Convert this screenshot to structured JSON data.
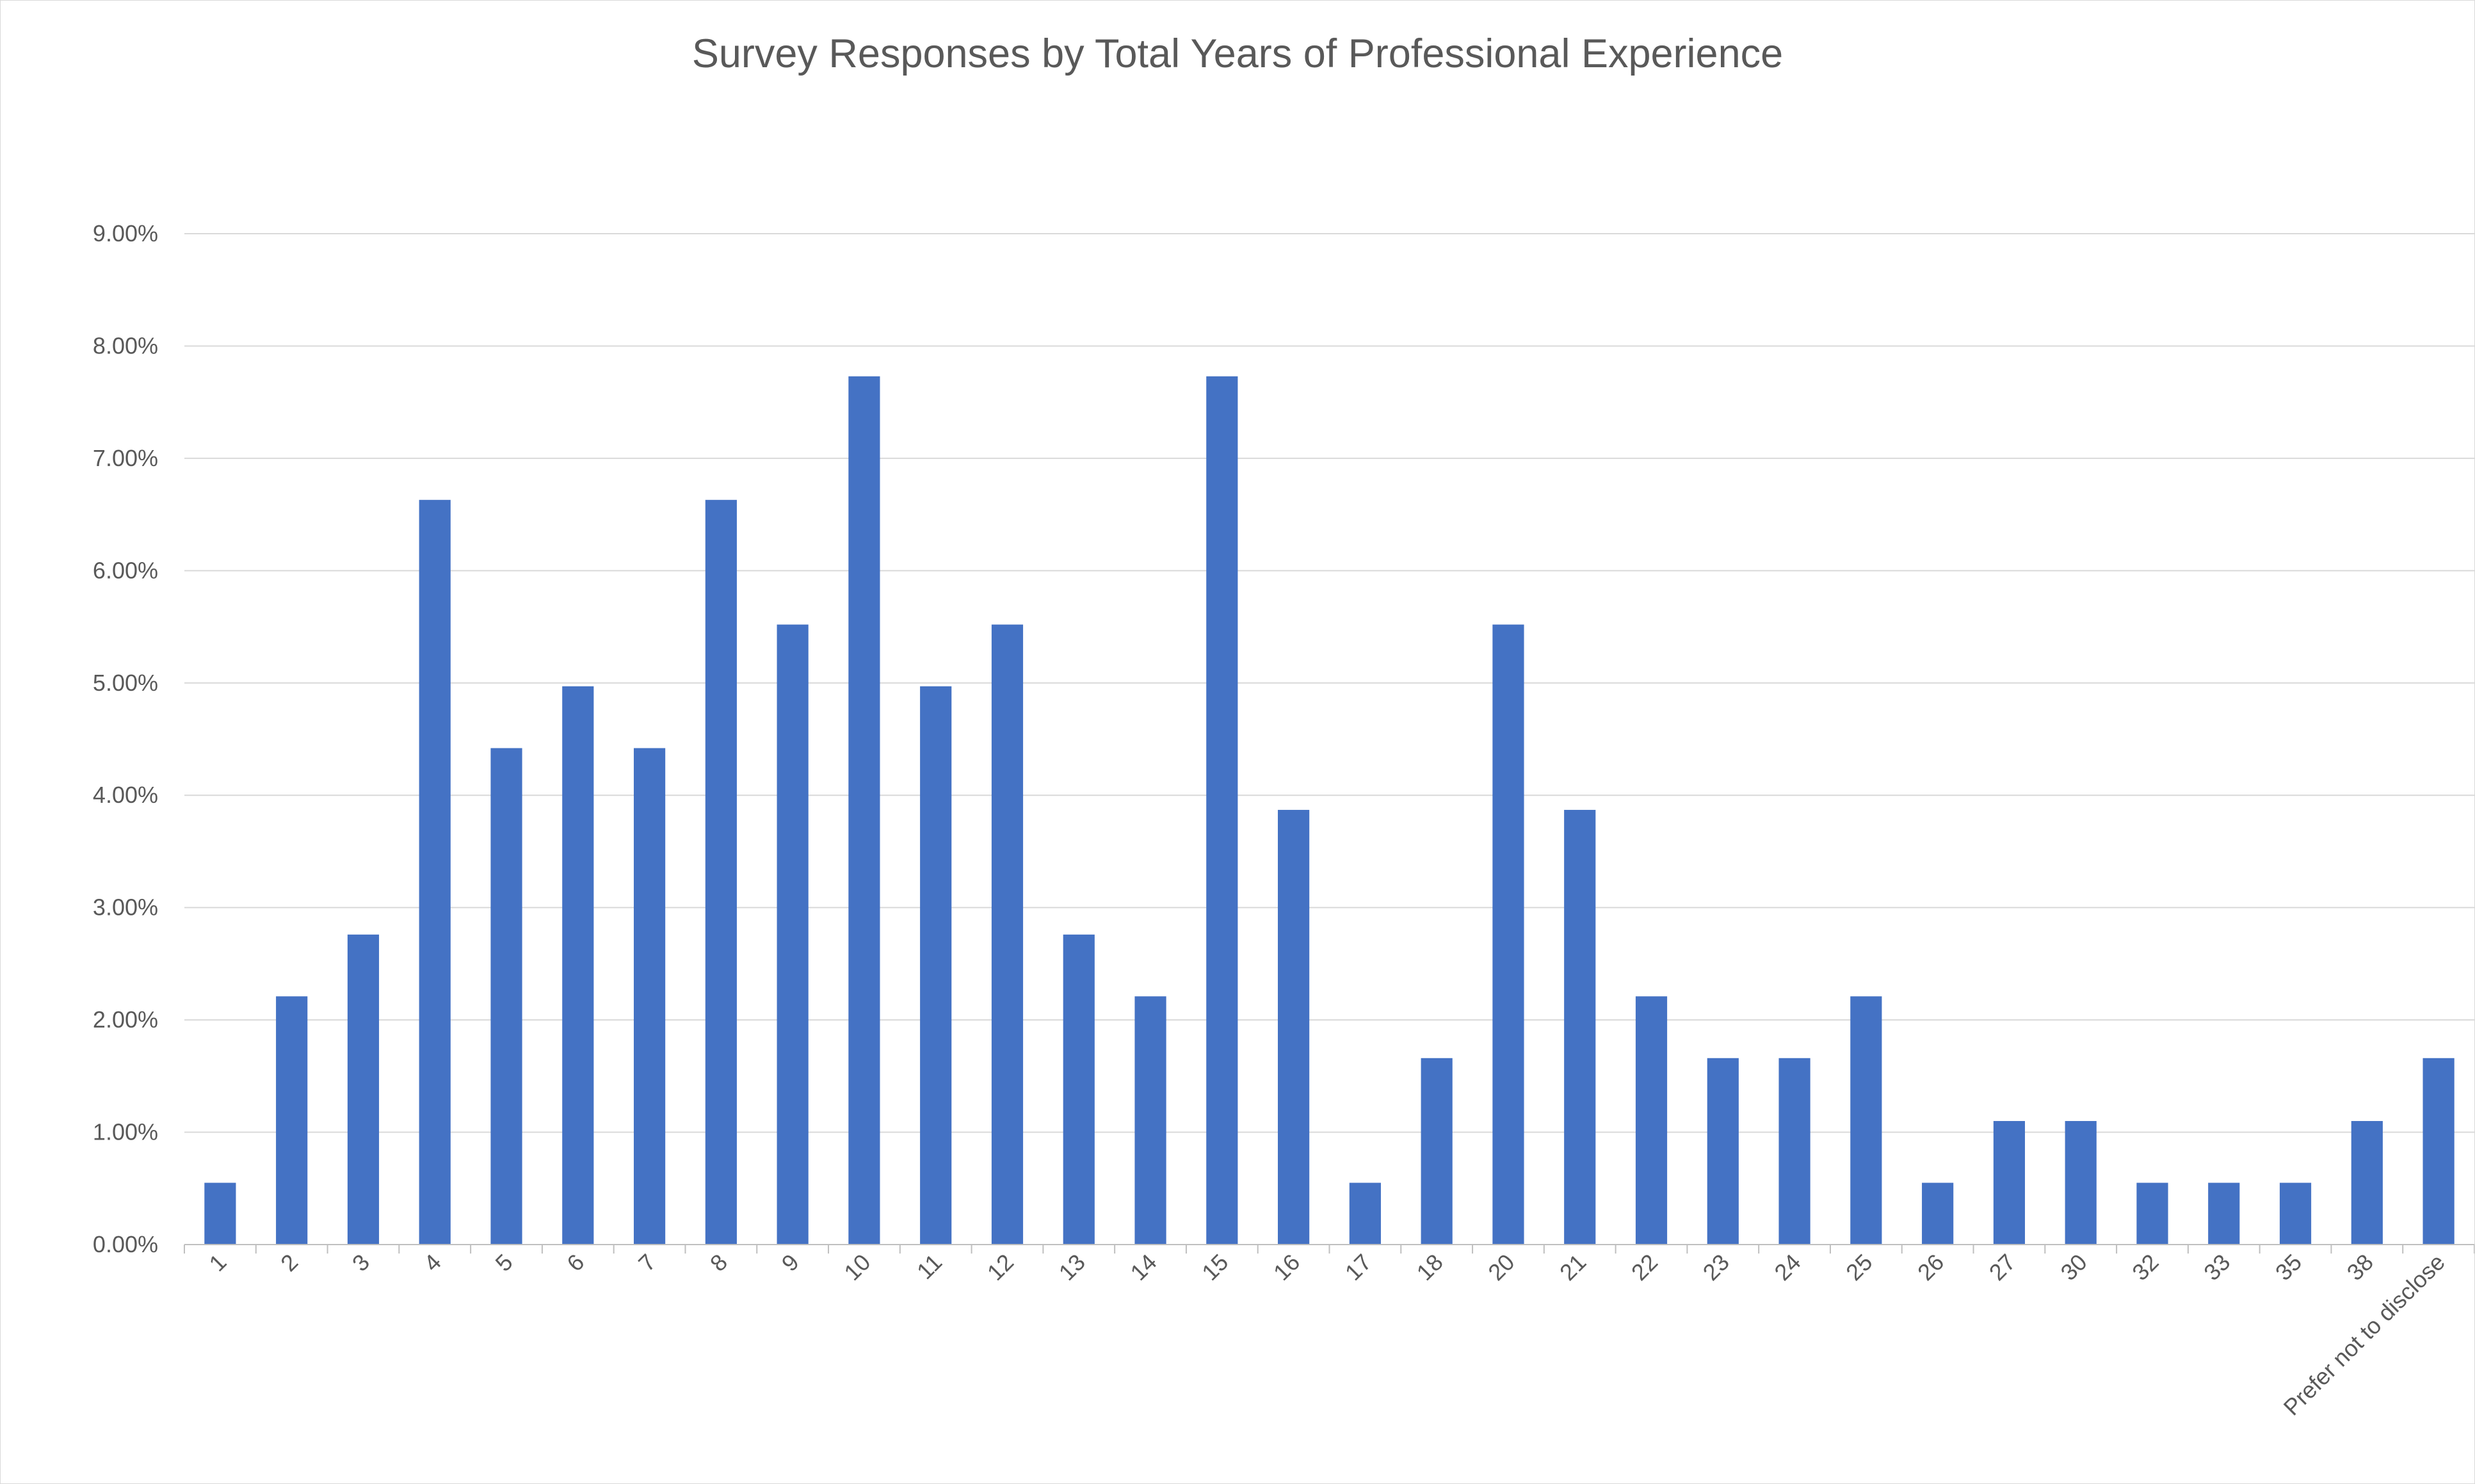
{
  "chart_data": {
    "type": "bar",
    "title": "Survey Responses by Total Years of Professional Experience",
    "xlabel": "",
    "ylabel": "",
    "ylim": [
      0,
      9
    ],
    "y_ticks": [
      "0.00%",
      "1.00%",
      "2.00%",
      "3.00%",
      "4.00%",
      "5.00%",
      "6.00%",
      "7.00%",
      "8.00%",
      "9.00%"
    ],
    "value_unit": "percent",
    "grid": true,
    "legend": "none",
    "bar_color": "#4472c4",
    "categories": [
      "1",
      "2",
      "3",
      "4",
      "5",
      "6",
      "7",
      "8",
      "9",
      "10",
      "11",
      "12",
      "13",
      "14",
      "15",
      "16",
      "17",
      "18",
      "20",
      "21",
      "22",
      "23",
      "24",
      "25",
      "26",
      "27",
      "30",
      "32",
      "33",
      "35",
      "38",
      "Prefer not to disclose"
    ],
    "values": [
      0.55,
      2.21,
      2.76,
      6.63,
      4.42,
      4.97,
      4.42,
      6.63,
      5.52,
      7.73,
      4.97,
      5.52,
      2.76,
      2.21,
      7.73,
      3.87,
      0.55,
      1.66,
      5.52,
      3.87,
      2.21,
      1.66,
      1.66,
      2.21,
      0.55,
      1.1,
      1.1,
      0.55,
      0.55,
      0.55,
      1.1,
      1.66
    ]
  }
}
